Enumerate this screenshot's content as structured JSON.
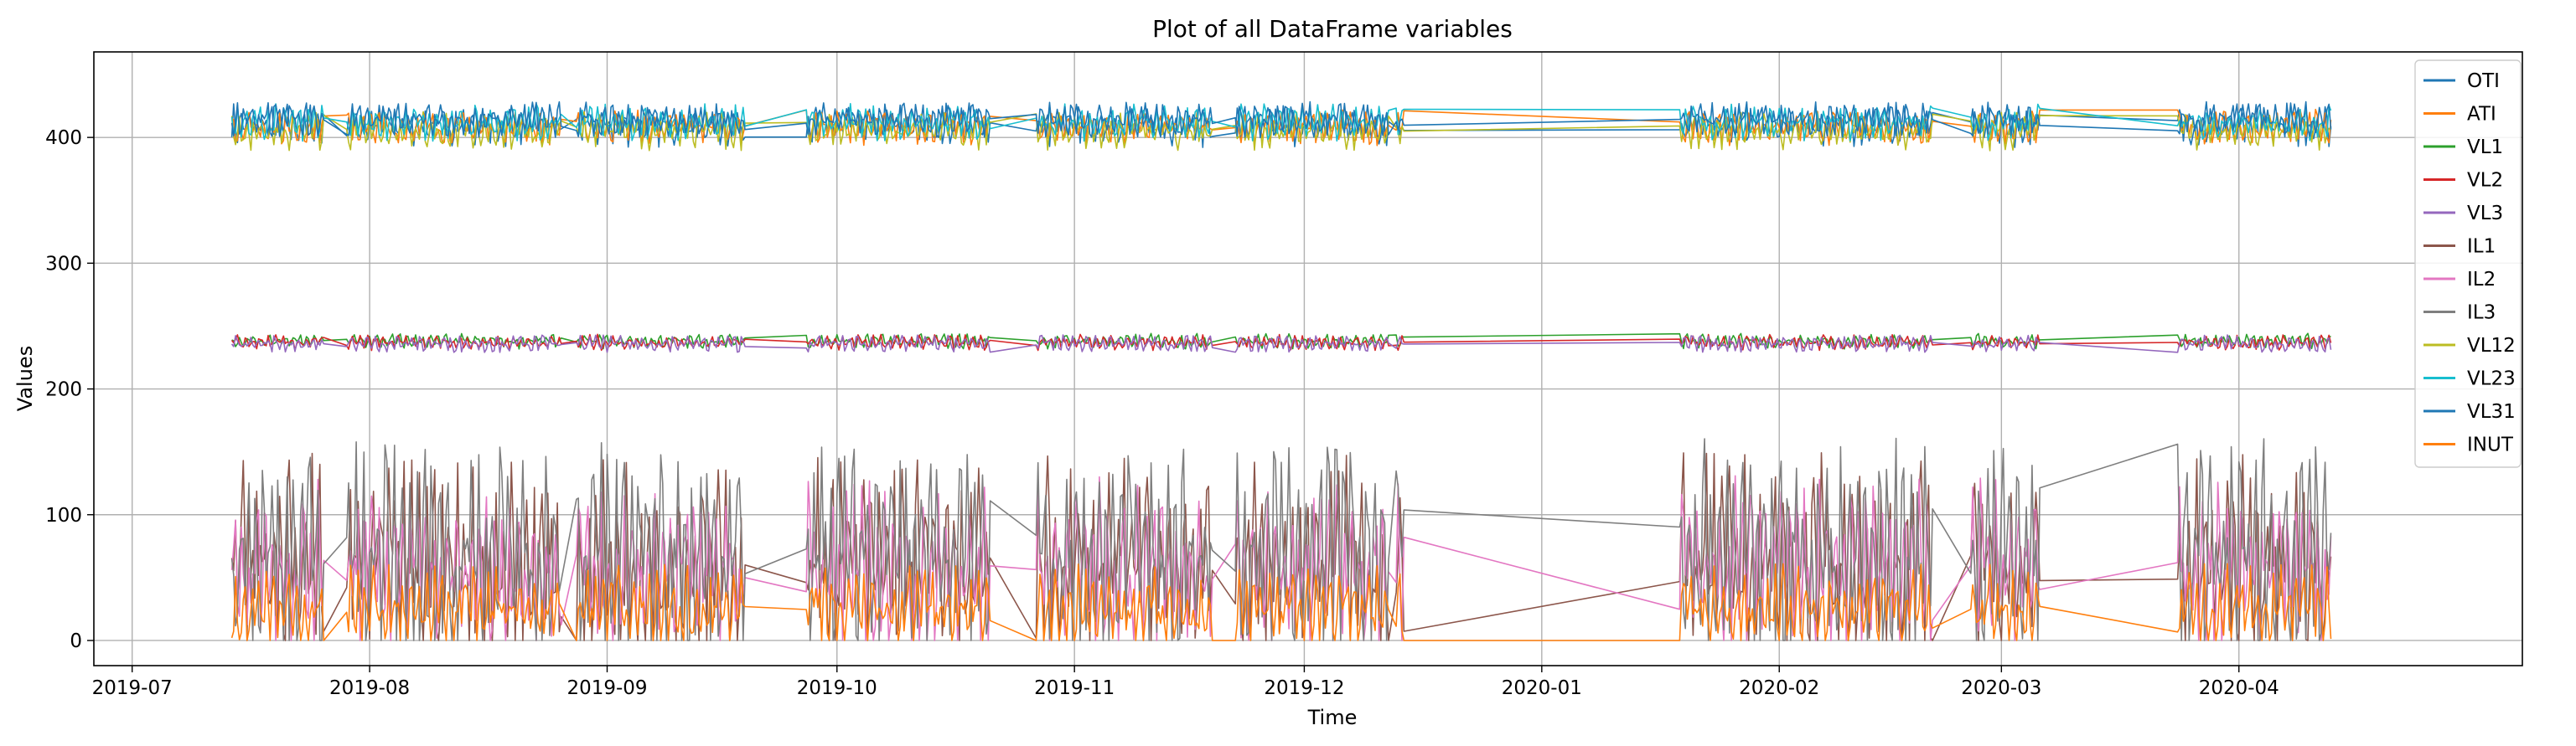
{
  "chart_data": {
    "type": "line",
    "title": "Plot of all DataFrame variables",
    "xlabel": "Time",
    "ylabel": "Values",
    "xlim": [
      "2019-06-26",
      "2020-05-08"
    ],
    "ylim": [
      -20,
      468
    ],
    "x_ticks": [
      "2019-07",
      "2019-08",
      "2019-09",
      "2019-10",
      "2019-11",
      "2019-12",
      "2020-01",
      "2020-02",
      "2020-03",
      "2020-04"
    ],
    "y_ticks": [
      0,
      100,
      200,
      300,
      400
    ],
    "grid": true,
    "legend_position": "top-right",
    "data_start": "2019-07-14",
    "data_end": "2020-04-13",
    "series": [
      {
        "name": "OTI",
        "color": "#1f77b4",
        "level": 410,
        "amp": 14
      },
      {
        "name": "ATI",
        "color": "#ff7f0e",
        "level": 408,
        "amp": 12
      },
      {
        "name": "VL1",
        "color": "#2ca02c",
        "level": 238,
        "amp": 5
      },
      {
        "name": "VL2",
        "color": "#d62728",
        "level": 237,
        "amp": 5
      },
      {
        "name": "VL3",
        "color": "#9467bd",
        "level": 236,
        "amp": 6
      },
      {
        "name": "IL1",
        "color": "#8c564b",
        "level": 60,
        "amp": 70
      },
      {
        "name": "IL2",
        "color": "#e377c2",
        "level": 55,
        "amp": 60
      },
      {
        "name": "IL3",
        "color": "#7f7f7f",
        "level": 70,
        "amp": 80
      },
      {
        "name": "VL12",
        "color": "#bcbd22",
        "level": 405,
        "amp": 12
      },
      {
        "name": "VL23",
        "color": "#17becf",
        "level": 412,
        "amp": 12
      },
      {
        "name": "VL31",
        "color": "#1f77b4",
        "level": 414,
        "amp": 12
      },
      {
        "name": "INUT",
        "color": "#ff7f0e",
        "level": 25,
        "amp": 28
      }
    ],
    "segments": [
      [
        "2019-07-14",
        "2019-07-26"
      ],
      [
        "2019-07-29",
        "2019-08-26"
      ],
      [
        "2019-08-28",
        "2019-09-19"
      ],
      [
        "2019-09-27",
        "2019-10-21"
      ],
      [
        "2019-10-27",
        "2019-11-19"
      ],
      [
        "2019-11-22",
        "2019-12-12"
      ],
      [
        "2019-12-13",
        "2019-12-14"
      ],
      [
        "2020-01-19",
        "2020-02-21"
      ],
      [
        "2020-02-26",
        "2020-03-06"
      ],
      [
        "2020-03-24",
        "2020-04-13"
      ]
    ]
  }
}
